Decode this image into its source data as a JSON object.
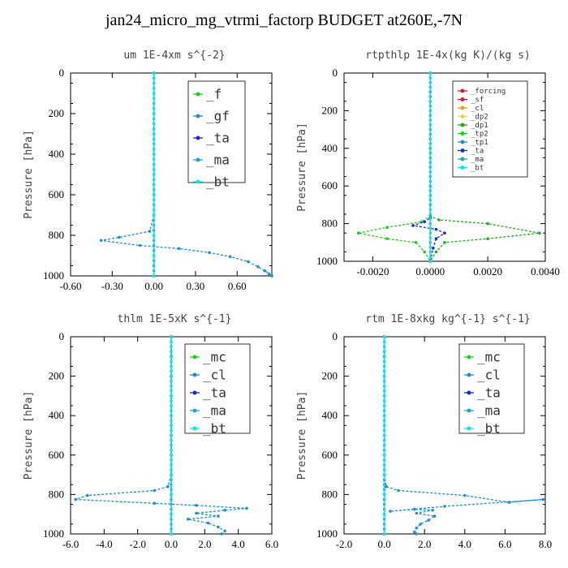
{
  "title": "jan24_micro_mg_vtrmi_factorp  BUDGET at260E,-7N",
  "colors": {
    "f": "#22cc22",
    "gf": "#1a8fd4",
    "ta": "#1a2ad6",
    "ma": "#1aa8d4",
    "bt": "#00e8f0",
    "forcing": "#cc2222",
    "sf": "#cc2222",
    "cl": "#e8a010",
    "dp2": "#f0d040",
    "dp1": "#22aa22",
    "tp2": "#22cc22",
    "tp1": "#1a8fd4",
    "mc": "#22cc22"
  },
  "chart_data": [
    {
      "type": "line",
      "title": "um   1E-4xm s^{-2}",
      "ylabel": "Pressure [hPa]",
      "xlim": [
        -0.6,
        0.85
      ],
      "ylim": [
        1000,
        0
      ],
      "xticks": [
        "-0.60",
        "-0.30",
        "0.00",
        "0.30",
        "0.60"
      ],
      "xtick_values": [
        -0.6,
        -0.3,
        0,
        0.3,
        0.6
      ],
      "yticks": [
        "0",
        "200",
        "400",
        "600",
        "800",
        "1000"
      ],
      "ytick_values": [
        0,
        200,
        400,
        600,
        800,
        1000
      ],
      "legend": {
        "position": "top-right",
        "entries": [
          "_f",
          "_gf",
          "_ta",
          "_ma",
          "_bt"
        ],
        "keys": [
          "f",
          "gf",
          "ta",
          "ma",
          "bt"
        ]
      },
      "series": [
        {
          "name": "_f",
          "key": "f",
          "points": [
            [
              0,
              0
            ],
            [
              0,
              100
            ],
            [
              0,
              200
            ],
            [
              0,
              300
            ],
            [
              0,
              400
            ],
            [
              0,
              500
            ],
            [
              0,
              600
            ],
            [
              0,
              700
            ],
            [
              0,
              800
            ],
            [
              0,
              900
            ],
            [
              0,
              1000
            ]
          ]
        },
        {
          "name": "_gf",
          "key": "gf",
          "points": [
            [
              0,
              0
            ],
            [
              0,
              100
            ],
            [
              0,
              200
            ],
            [
              0,
              300
            ],
            [
              0,
              400
            ],
            [
              0,
              500
            ],
            [
              0,
              600
            ],
            [
              0,
              700
            ],
            [
              -0.03,
              780
            ],
            [
              -0.25,
              810
            ],
            [
              -0.38,
              825
            ],
            [
              -0.1,
              850
            ],
            [
              0.18,
              865
            ],
            [
              0.4,
              885
            ],
            [
              0.55,
              905
            ],
            [
              0.68,
              930
            ],
            [
              0.75,
              955
            ],
            [
              0.8,
              975
            ],
            [
              0.83,
              990
            ],
            [
              0.85,
              1000
            ]
          ]
        },
        {
          "name": "_ta",
          "key": "ta",
          "points": [
            [
              0,
              0
            ],
            [
              0,
              1000
            ]
          ]
        },
        {
          "name": "_ma",
          "key": "ma",
          "points": [
            [
              0,
              0
            ],
            [
              0,
              1000
            ]
          ]
        },
        {
          "name": "_bt",
          "key": "bt",
          "points": [
            [
              0,
              0
            ],
            [
              0,
              100
            ],
            [
              0,
              200
            ],
            [
              0,
              300
            ],
            [
              0,
              400
            ],
            [
              0,
              500
            ],
            [
              0,
              600
            ],
            [
              0,
              700
            ],
            [
              0,
              800
            ],
            [
              0,
              900
            ],
            [
              0,
              1000
            ]
          ]
        }
      ]
    },
    {
      "type": "line",
      "title": "rtpthlp   1E-4x(kg K)/(kg s)",
      "ylabel": "Pressure [hPa]",
      "xlim": [
        -0.003,
        0.004
      ],
      "ylim": [
        1000,
        0
      ],
      "xticks": [
        "-0.0020",
        "0.0000",
        "0.0020",
        "0.0040"
      ],
      "xtick_values": [
        -0.002,
        0,
        0.002,
        0.004
      ],
      "yticks": [
        "0",
        "200",
        "400",
        "600",
        "800",
        "1000"
      ],
      "ytick_values": [
        0,
        200,
        400,
        600,
        800,
        1000
      ],
      "legend": {
        "position": "top-right",
        "entries": [
          "_forcing",
          "_sf",
          "_cl",
          "_dp2",
          "_dp1",
          "_tp2",
          "_tp1",
          "_ta",
          "_ma",
          "_bt"
        ],
        "keys": [
          "forcing",
          "sf",
          "cl",
          "dp2",
          "dp1",
          "tp2",
          "tp1",
          "ta",
          "ma",
          "bt"
        ]
      },
      "series": [
        {
          "name": "_forcing",
          "key": "forcing",
          "points": [
            [
              0,
              0
            ],
            [
              0,
              100
            ],
            [
              0,
              200
            ],
            [
              0,
              300
            ],
            [
              0,
              400
            ],
            [
              0,
              500
            ],
            [
              0,
              600
            ],
            [
              0,
              700
            ],
            [
              0,
              800
            ],
            [
              0,
              900
            ],
            [
              0,
              1000
            ]
          ]
        },
        {
          "name": "_sf",
          "key": "sf",
          "points": [
            [
              0,
              0
            ],
            [
              0,
              1000
            ]
          ]
        },
        {
          "name": "_dp1",
          "key": "dp1",
          "points": [
            [
              0,
              0
            ],
            [
              0,
              760
            ],
            [
              0.0003,
              780
            ],
            [
              0.002,
              800
            ],
            [
              0.0038,
              850
            ],
            [
              0.002,
              880
            ],
            [
              0.0005,
              900
            ],
            [
              0.0002,
              950
            ],
            [
              0,
              1000
            ]
          ]
        },
        {
          "name": "_tp2",
          "key": "tp2",
          "points": [
            [
              0,
              0
            ],
            [
              0,
              760
            ],
            [
              -0.0003,
              790
            ],
            [
              -0.0015,
              820
            ],
            [
              -0.0025,
              850
            ],
            [
              -0.0015,
              880
            ],
            [
              -0.0005,
              900
            ],
            [
              -0.0002,
              950
            ],
            [
              0,
              1000
            ]
          ]
        },
        {
          "name": "_ta",
          "key": "ta",
          "points": [
            [
              0,
              0
            ],
            [
              0,
              770
            ],
            [
              -0.0002,
              790
            ],
            [
              -0.0006,
              810
            ],
            [
              0.0002,
              830
            ],
            [
              0.0005,
              850
            ],
            [
              0.0002,
              880
            ],
            [
              0.0001,
              930
            ],
            [
              0,
              1000
            ]
          ]
        },
        {
          "name": "_bt",
          "key": "bt",
          "points": [
            [
              0,
              0
            ],
            [
              0,
              1000
            ]
          ]
        }
      ]
    },
    {
      "type": "line",
      "title": "thlm   1E-5xK s^{-1}",
      "ylabel": "Pressure [hPa]",
      "xlim": [
        -6.0,
        6.0
      ],
      "ylim": [
        1000,
        0
      ],
      "xticks": [
        "-6.0",
        "-4.0",
        "-2.0",
        "0.0",
        "2.0",
        "4.0",
        "6.0"
      ],
      "xtick_values": [
        -6,
        -4,
        -2,
        0,
        2,
        4,
        6
      ],
      "yticks": [
        "0",
        "200",
        "400",
        "600",
        "800",
        "1000"
      ],
      "ytick_values": [
        0,
        200,
        400,
        600,
        800,
        1000
      ],
      "legend": {
        "position": "top-right",
        "entries": [
          "_mc",
          "_cl",
          "_ta",
          "_ma",
          "_bt"
        ],
        "keys": [
          "mc",
          "gf",
          "ta",
          "ma",
          "bt"
        ]
      },
      "series": [
        {
          "name": "_mc",
          "key": "mc",
          "points": [
            [
              0,
              0
            ],
            [
              0,
              100
            ],
            [
              0,
              200
            ],
            [
              0,
              300
            ],
            [
              0,
              400
            ],
            [
              0,
              500
            ],
            [
              0,
              600
            ],
            [
              0,
              700
            ],
            [
              0,
              800
            ],
            [
              0,
              900
            ],
            [
              0,
              1000
            ]
          ]
        },
        {
          "name": "_cl",
          "key": "gf",
          "points": [
            [
              0,
              0
            ],
            [
              0,
              100
            ],
            [
              0,
              200
            ],
            [
              0,
              300
            ],
            [
              0,
              400
            ],
            [
              0,
              500
            ],
            [
              0,
              600
            ],
            [
              0,
              700
            ],
            [
              -0.2,
              760
            ],
            [
              -1.0,
              780
            ],
            [
              -5.0,
              805
            ],
            [
              -5.7,
              825
            ],
            [
              -1.0,
              845
            ],
            [
              1.5,
              855
            ],
            [
              4.5,
              870
            ],
            [
              3.2,
              880
            ],
            [
              1.5,
              895
            ],
            [
              2.8,
              910
            ],
            [
              1.0,
              925
            ],
            [
              2.2,
              945
            ],
            [
              2.8,
              965
            ],
            [
              3.2,
              985
            ],
            [
              3.0,
              1000
            ]
          ]
        },
        {
          "name": "_ta",
          "key": "ta",
          "points": [
            [
              0,
              0
            ],
            [
              0,
              1000
            ]
          ]
        },
        {
          "name": "_ma",
          "key": "ma",
          "points": [
            [
              0,
              0
            ],
            [
              0,
              1000
            ]
          ]
        },
        {
          "name": "_bt",
          "key": "bt",
          "points": [
            [
              0,
              0
            ],
            [
              0,
              100
            ],
            [
              0,
              200
            ],
            [
              0,
              300
            ],
            [
              0,
              400
            ],
            [
              0,
              500
            ],
            [
              0,
              600
            ],
            [
              0,
              700
            ],
            [
              0,
              800
            ],
            [
              0,
              900
            ],
            [
              0,
              1000
            ]
          ]
        }
      ]
    },
    {
      "type": "line",
      "title": "rtm   1E-8xkg kg^{-1} s^{-1}",
      "ylabel": "Pressure [hPa]",
      "xlim": [
        -2.0,
        8.0
      ],
      "ylim": [
        1000,
        0
      ],
      "xticks": [
        "-2.0",
        "0.0",
        "2.0",
        "4.0",
        "6.0",
        "8.0"
      ],
      "xtick_values": [
        -2,
        0,
        2,
        4,
        6,
        8
      ],
      "yticks": [
        "0",
        "200",
        "400",
        "600",
        "800",
        "1000"
      ],
      "ytick_values": [
        0,
        200,
        400,
        600,
        800,
        1000
      ],
      "legend": {
        "position": "top-right",
        "entries": [
          "_mc",
          "_cl",
          "_ta",
          "_ma",
          "_bt"
        ],
        "keys": [
          "mc",
          "gf",
          "ta",
          "ma",
          "bt"
        ]
      },
      "series": [
        {
          "name": "_mc",
          "key": "mc",
          "points": [
            [
              0,
              0
            ],
            [
              0,
              100
            ],
            [
              0,
              200
            ],
            [
              0,
              300
            ],
            [
              0,
              400
            ],
            [
              0,
              500
            ],
            [
              0,
              600
            ],
            [
              0,
              700
            ],
            [
              0,
              800
            ],
            [
              0,
              900
            ],
            [
              0,
              1000
            ]
          ]
        },
        {
          "name": "_cl",
          "key": "gf",
          "points": [
            [
              0,
              0
            ],
            [
              0,
              100
            ],
            [
              0,
              200
            ],
            [
              0,
              300
            ],
            [
              0,
              400
            ],
            [
              0,
              500
            ],
            [
              0,
              600
            ],
            [
              0,
              700
            ],
            [
              0.1,
              760
            ],
            [
              0.7,
              780
            ],
            [
              4.0,
              805
            ],
            [
              6.2,
              840
            ],
            [
              7.9,
              825
            ],
            [
              3.0,
              860
            ],
            [
              0.3,
              885
            ],
            [
              1.5,
              875
            ],
            [
              2.4,
              880
            ],
            [
              1.6,
              895
            ],
            [
              2.5,
              910
            ],
            [
              2.2,
              930
            ],
            [
              1.8,
              950
            ],
            [
              1.6,
              970
            ],
            [
              1.5,
              990
            ],
            [
              1.6,
              1000
            ]
          ]
        },
        {
          "name": "_ta",
          "key": "ta",
          "points": [
            [
              0,
              0
            ],
            [
              0,
              1000
            ]
          ]
        },
        {
          "name": "_ma",
          "key": "ma",
          "points": [
            [
              0,
              0
            ],
            [
              0,
              1000
            ]
          ]
        },
        {
          "name": "_bt",
          "key": "bt",
          "points": [
            [
              0,
              0
            ],
            [
              0,
              100
            ],
            [
              0,
              200
            ],
            [
              0,
              300
            ],
            [
              0,
              400
            ],
            [
              0,
              500
            ],
            [
              0,
              600
            ],
            [
              0,
              700
            ],
            [
              0,
              800
            ],
            [
              0,
              900
            ],
            [
              0,
              1000
            ]
          ]
        }
      ]
    }
  ]
}
